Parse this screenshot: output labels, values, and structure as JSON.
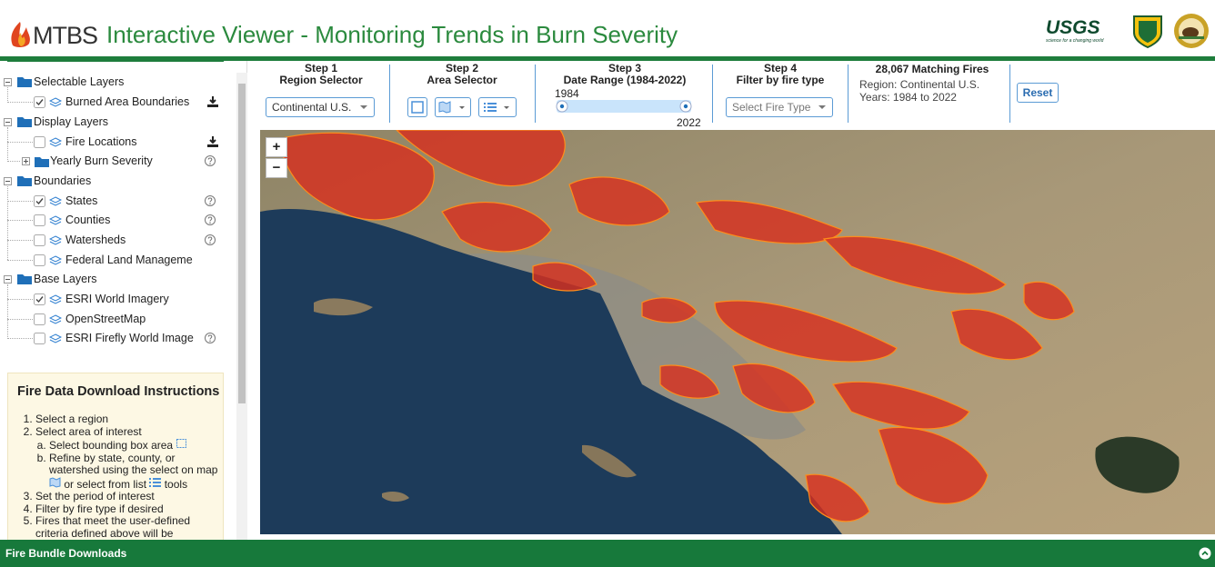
{
  "header": {
    "logo": "MTBS",
    "title": "Interactive Viewer - Monitoring Trends in Burn Severity",
    "usgs": "USGS",
    "usgs_tagline": "science for a changing world"
  },
  "layers": [
    {
      "label": "Selectable Layers",
      "items": [
        {
          "label": "Burned Area Boundaries",
          "checked": true,
          "download": true
        }
      ]
    },
    {
      "label": "Display Layers",
      "items": [
        {
          "label": "Fire Locations",
          "checked": false,
          "download": true
        },
        {
          "label": "Yearly Burn Severity",
          "folder": true,
          "help": true
        }
      ]
    },
    {
      "label": "Boundaries",
      "items": [
        {
          "label": "States",
          "checked": true,
          "help": true
        },
        {
          "label": "Counties",
          "checked": false,
          "help": true
        },
        {
          "label": "Watersheds",
          "checked": false,
          "help": true
        },
        {
          "label": "Federal Land Manageme",
          "checked": false
        }
      ]
    },
    {
      "label": "Base Layers",
      "items": [
        {
          "label": "ESRI World Imagery",
          "checked": true
        },
        {
          "label": "OpenStreetMap",
          "checked": false
        },
        {
          "label": "ESRI Firefly World Image",
          "checked": false,
          "help": true
        }
      ]
    }
  ],
  "instructions": {
    "title": "Fire Data Download Instructions",
    "steps": [
      "Select a region",
      "Select area of interest",
      "Set the period of interest",
      "Filter by fire type if desired",
      "Fires that meet the user-defined criteria defined above will be"
    ],
    "substeps": {
      "a": "Select bounding box area",
      "b_1": "Refine by state, county, or watershed using the select on map",
      "b_2": "or select from list",
      "b_3": "tools"
    }
  },
  "toolbar": {
    "step1": {
      "step": "Step 1",
      "label": "Region Selector",
      "select": "Continental U.S."
    },
    "step2": {
      "step": "Step 2",
      "label": "Area Selector"
    },
    "step3": {
      "step": "Step 3",
      "label": "Date Range (1984-2022)",
      "start": 1984,
      "end": 2022
    },
    "step4": {
      "step": "Step 4",
      "label": "Filter by fire type",
      "select": "Select Fire Type"
    },
    "summary": {
      "title": "28,067 Matching Fires",
      "region": "Region: Continental U.S.",
      "years": "Years: 1984 to 2022"
    },
    "reset": "Reset"
  },
  "map": {
    "zoom_in": "+",
    "zoom_out": "−"
  },
  "footer": "Fire Bundle Downloads"
}
